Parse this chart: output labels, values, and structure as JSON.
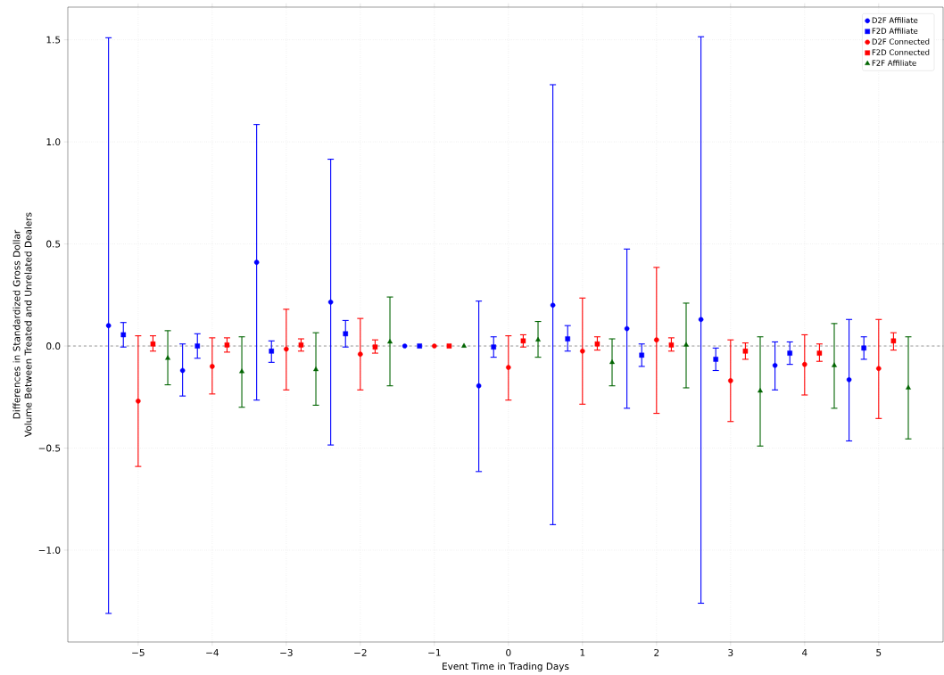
{
  "chart_data": {
    "type": "scatter",
    "xlabel": "Event Time in Trading Days",
    "ylabel": "Differences in Standardized Gross Dollar Volume Between Treated and Unrelated Dealers",
    "xlim": [
      -5.95,
      5.87
    ],
    "ylim": [
      -1.45,
      1.66
    ],
    "xticks": [
      {
        "value": -5,
        "label": "−5"
      },
      {
        "value": -4,
        "label": "−4"
      },
      {
        "value": -3,
        "label": "−3"
      },
      {
        "value": -2,
        "label": "−2"
      },
      {
        "value": -1,
        "label": "−1"
      },
      0,
      1,
      2,
      3,
      4,
      5
    ],
    "yticks": [
      {
        "value": -1.0,
        "label": "−1.0"
      },
      {
        "value": -0.5,
        "label": "−0.5"
      },
      {
        "value": 0,
        "label": "0.0"
      },
      {
        "value": 0.5,
        "label": "0.5"
      },
      {
        "value": 1.0,
        "label": "1.0"
      },
      {
        "value": 1.5,
        "label": "1.5"
      }
    ],
    "grid": true,
    "legend": "top right",
    "ref_lines": [
      {
        "axis": "y",
        "value": 0,
        "color": "#808080",
        "line_style": "dashed"
      }
    ],
    "series": [
      {
        "name": "D2F Affiliate",
        "color": "#0000ff",
        "marker": "circle",
        "x": [
          -5.4,
          -4.4,
          -3.4,
          -2.4,
          -1.4,
          -0.4,
          0.6,
          1.6,
          2.6,
          3.6,
          4.6
        ],
        "values": [
          0.1,
          -0.12,
          0.41,
          0.215,
          0,
          -0.195,
          0.2,
          0.085,
          0.13,
          -0.095,
          -0.165
        ],
        "errors": [
          [
            -1.31,
            1.51
          ],
          [
            -0.245,
            0.01
          ],
          [
            -0.265,
            1.085
          ],
          [
            -0.485,
            0.915
          ],
          null,
          [
            -0.615,
            0.22
          ],
          [
            -0.875,
            1.28
          ],
          [
            -0.305,
            0.475
          ],
          [
            -1.26,
            1.515
          ],
          [
            -0.215,
            0.02
          ],
          [
            -0.465,
            0.13
          ]
        ]
      },
      {
        "name": "F2D Affiliate",
        "color": "#0000ff",
        "marker": "square",
        "x": [
          -5.2,
          -4.2,
          -3.2,
          -2.2,
          -1.2,
          -0.2,
          0.8,
          1.8,
          2.8,
          3.8,
          4.8
        ],
        "values": [
          0.055,
          0.0,
          -0.025,
          0.06,
          0,
          -0.005,
          0.035,
          -0.045,
          -0.065,
          -0.035,
          -0.01
        ],
        "errors": [
          [
            -0.005,
            0.115
          ],
          [
            -0.06,
            0.06
          ],
          [
            -0.08,
            0.025
          ],
          [
            -0.005,
            0.125
          ],
          null,
          [
            -0.055,
            0.045
          ],
          [
            -0.025,
            0.1
          ],
          [
            -0.1,
            0.01
          ],
          [
            -0.12,
            -0.01
          ],
          [
            -0.09,
            0.02
          ],
          [
            -0.065,
            0.045
          ]
        ]
      },
      {
        "name": "D2F Connected",
        "color": "#ff0000",
        "marker": "circle",
        "x": [
          -5,
          -4,
          -3,
          -2,
          -1,
          0,
          1,
          2,
          3,
          4,
          5
        ],
        "values": [
          -0.27,
          -0.1,
          -0.015,
          -0.04,
          0,
          -0.105,
          -0.025,
          0.03,
          -0.17,
          -0.09,
          -0.11
        ],
        "errors": [
          [
            -0.59,
            0.05
          ],
          [
            -0.235,
            0.04
          ],
          [
            -0.215,
            0.18
          ],
          [
            -0.215,
            0.135
          ],
          null,
          [
            -0.265,
            0.05
          ],
          [
            -0.285,
            0.235
          ],
          [
            -0.33,
            0.385
          ],
          [
            -0.37,
            0.03
          ],
          [
            -0.24,
            0.055
          ],
          [
            -0.355,
            0.13
          ]
        ]
      },
      {
        "name": "F2D Connected",
        "color": "#ff0000",
        "marker": "square",
        "x": [
          -4.8,
          -3.8,
          -2.8,
          -1.8,
          -0.8,
          0.2,
          1.2,
          2.2,
          3.2,
          4.2,
          5.2
        ],
        "values": [
          0.01,
          0.005,
          0.005,
          -0.005,
          0,
          0.025,
          0.01,
          0.005,
          -0.025,
          -0.035,
          0.025
        ],
        "errors": [
          [
            -0.025,
            0.05
          ],
          [
            -0.03,
            0.04
          ],
          [
            -0.025,
            0.035
          ],
          [
            -0.035,
            0.03
          ],
          null,
          [
            -0.005,
            0.055
          ],
          [
            -0.02,
            0.045
          ],
          [
            -0.025,
            0.04
          ],
          [
            -0.065,
            0.015
          ],
          [
            -0.075,
            0.01
          ],
          [
            -0.02,
            0.065
          ]
        ]
      },
      {
        "name": "F2F Affiliate",
        "color": "#006400",
        "marker": "triangle",
        "x": [
          -4.6,
          -3.6,
          -2.6,
          -1.6,
          -0.6,
          0.4,
          1.4,
          2.4,
          3.4,
          4.4,
          5.4
        ],
        "values": [
          -0.06,
          -0.125,
          -0.115,
          0.02,
          0,
          0.03,
          -0.08,
          0.005,
          -0.22,
          -0.095,
          -0.205
        ],
        "errors": [
          [
            -0.19,
            0.075
          ],
          [
            -0.3,
            0.045
          ],
          [
            -0.29,
            0.065
          ],
          [
            -0.195,
            0.24
          ],
          null,
          [
            -0.055,
            0.12
          ],
          [
            -0.195,
            0.035
          ],
          [
            -0.205,
            0.21
          ],
          [
            -0.49,
            0.045
          ],
          [
            -0.305,
            0.11
          ],
          [
            -0.455,
            0.045
          ]
        ]
      }
    ]
  }
}
